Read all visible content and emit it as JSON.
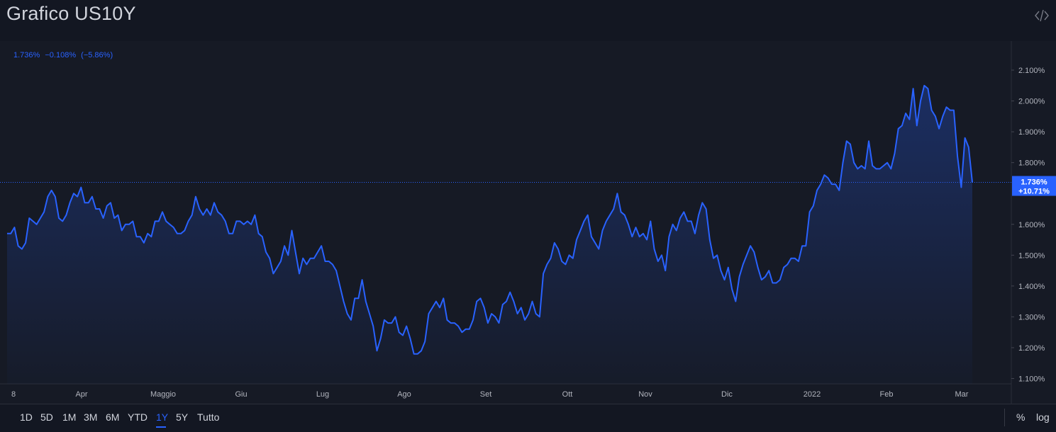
{
  "header": {
    "title": "Grafico US10Y",
    "embed_icon": "code-icon"
  },
  "legend": {
    "value": "1.736%",
    "change": "−0.108%",
    "change_pct": "(−5.86%)"
  },
  "last_price": {
    "value": "1.736%",
    "change": "+10.71%"
  },
  "toolbar": {
    "ranges": [
      "1D",
      "5D",
      "1M",
      "3M",
      "6M",
      "YTD",
      "1Y",
      "5Y",
      "Tutto"
    ],
    "active": "1Y",
    "percent_label": "%",
    "log_label": "log"
  },
  "colors": {
    "line": "#2962ff",
    "background": "#131722",
    "price_tag": "#2962ff"
  },
  "chart_data": {
    "type": "area",
    "series": [
      {
        "values": [
          1.57,
          1.57,
          1.59,
          1.53,
          1.52,
          1.54,
          1.62,
          1.61,
          1.6,
          1.62,
          1.64,
          1.69,
          1.71,
          1.69,
          1.62,
          1.61,
          1.63,
          1.67,
          1.7,
          1.69,
          1.72,
          1.67,
          1.67,
          1.69,
          1.65,
          1.65,
          1.62,
          1.66,
          1.67,
          1.62,
          1.63,
          1.58,
          1.6,
          1.6,
          1.61,
          1.56,
          1.56,
          1.54,
          1.57,
          1.56,
          1.61,
          1.61,
          1.64,
          1.61,
          1.6,
          1.59,
          1.57,
          1.57,
          1.58,
          1.61,
          1.63,
          1.69,
          1.65,
          1.63,
          1.65,
          1.63,
          1.67,
          1.64,
          1.63,
          1.61,
          1.57,
          1.57,
          1.61,
          1.61,
          1.6,
          1.61,
          1.6,
          1.63,
          1.57,
          1.56,
          1.51,
          1.49,
          1.44,
          1.46,
          1.48,
          1.53,
          1.5,
          1.58,
          1.51,
          1.44,
          1.49,
          1.47,
          1.49,
          1.49,
          1.51,
          1.53,
          1.48,
          1.48,
          1.47,
          1.45,
          1.4,
          1.35,
          1.31,
          1.29,
          1.36,
          1.36,
          1.42,
          1.35,
          1.31,
          1.27,
          1.19,
          1.23,
          1.29,
          1.28,
          1.28,
          1.3,
          1.25,
          1.24,
          1.27,
          1.23,
          1.18,
          1.18,
          1.19,
          1.22,
          1.31,
          1.33,
          1.35,
          1.33,
          1.36,
          1.29,
          1.28,
          1.28,
          1.27,
          1.25,
          1.26,
          1.26,
          1.29,
          1.35,
          1.36,
          1.33,
          1.28,
          1.31,
          1.3,
          1.28,
          1.34,
          1.35,
          1.38,
          1.35,
          1.31,
          1.33,
          1.29,
          1.31,
          1.35,
          1.31,
          1.3,
          1.44,
          1.47,
          1.49,
          1.54,
          1.52,
          1.48,
          1.47,
          1.5,
          1.49,
          1.55,
          1.58,
          1.61,
          1.63,
          1.56,
          1.54,
          1.52,
          1.58,
          1.61,
          1.63,
          1.65,
          1.7,
          1.64,
          1.63,
          1.6,
          1.56,
          1.59,
          1.56,
          1.57,
          1.55,
          1.61,
          1.52,
          1.48,
          1.5,
          1.45,
          1.56,
          1.6,
          1.58,
          1.62,
          1.64,
          1.61,
          1.61,
          1.57,
          1.63,
          1.67,
          1.65,
          1.55,
          1.49,
          1.5,
          1.45,
          1.42,
          1.46,
          1.39,
          1.35,
          1.43,
          1.47,
          1.5,
          1.53,
          1.51,
          1.46,
          1.42,
          1.43,
          1.45,
          1.41,
          1.41,
          1.42,
          1.46,
          1.47,
          1.49,
          1.49,
          1.48,
          1.53,
          1.53,
          1.64,
          1.66,
          1.71,
          1.73,
          1.76,
          1.75,
          1.73,
          1.73,
          1.71,
          1.8,
          1.87,
          1.86,
          1.8,
          1.78,
          1.79,
          1.78,
          1.87,
          1.79,
          1.78,
          1.78,
          1.79,
          1.8,
          1.78,
          1.83,
          1.91,
          1.92,
          1.96,
          1.94,
          2.04,
          1.92,
          2.0,
          2.05,
          2.04,
          1.97,
          1.95,
          1.91,
          1.95,
          1.98,
          1.97,
          1.97,
          1.82,
          1.72,
          1.88,
          1.85,
          1.736
        ]
      }
    ],
    "x_ticks": [
      "8",
      "Apr",
      "Maggio",
      "Giu",
      "Lug",
      "Ago",
      "Set",
      "Ott",
      "Nov",
      "Dic",
      "2022",
      "Feb",
      "Mar"
    ],
    "y_ticks": [
      "2.100%",
      "2.000%",
      "1.900%",
      "1.800%",
      "1.600%",
      "1.500%",
      "1.400%",
      "1.300%",
      "1.200%",
      "1.100%"
    ],
    "y_tick_values": [
      2.1,
      2.0,
      1.9,
      1.8,
      1.6,
      1.5,
      1.4,
      1.3,
      1.2,
      1.1
    ],
    "ylim": [
      1.1,
      2.1
    ],
    "last_value": 1.736,
    "grid": false,
    "log_scale": false
  }
}
